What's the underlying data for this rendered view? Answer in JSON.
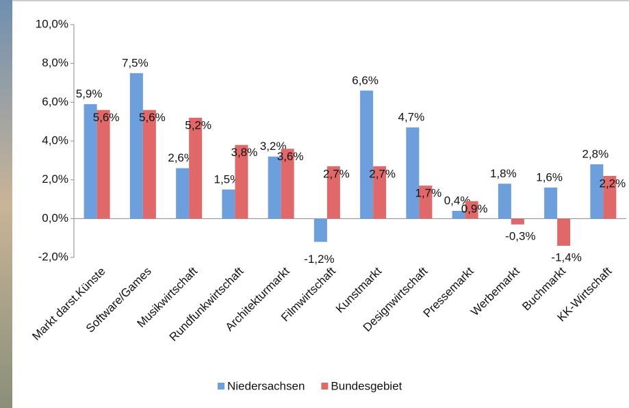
{
  "chart_data": {
    "type": "bar",
    "categories": [
      "Markt darst.Künste",
      "Software/Games",
      "Musikwirtschaft",
      "Rundfunkwirtschaft",
      "Architekturmarkt",
      "Filmwirtschaft",
      "Kunstmarkt",
      "Designwirtschaft",
      "Pressemarkt",
      "Werbemarkt",
      "Buchmarkt",
      "KK-Wirtschaft"
    ],
    "series": [
      {
        "name": "Niedersachsen",
        "color": "#6c9fdc",
        "values": [
          5.9,
          7.5,
          2.6,
          1.5,
          3.2,
          -1.2,
          6.6,
          4.7,
          0.4,
          1.8,
          1.6,
          2.8
        ],
        "value_labels": [
          "5,9%",
          "7,5%",
          "2,6%",
          "1,5%",
          "3,2%",
          "-1,2%",
          "6,6%",
          "4,7%",
          "0,4%",
          "1,8%",
          "1,6%",
          "2,8%"
        ]
      },
      {
        "name": "Bundesgebiet",
        "color": "#e06868",
        "values": [
          5.6,
          5.6,
          5.2,
          3.8,
          3.6,
          2.7,
          2.7,
          1.7,
          0.9,
          -0.3,
          -1.4,
          2.2
        ],
        "value_labels": [
          "5,6%",
          "5,6%",
          "5,2%",
          "3,8%",
          "3,6%",
          "2,7%",
          "2,7%",
          "1,7%",
          "0,9%",
          "-0,3%",
          "-1,4%",
          "2,2%"
        ]
      }
    ],
    "ylim": [
      -2,
      10
    ],
    "yticks": [
      {
        "value": -2,
        "label": "-2,0%"
      },
      {
        "value": 0,
        "label": "0,0%"
      },
      {
        "value": 2,
        "label": "2,0%"
      },
      {
        "value": 4,
        "label": "4,0%"
      },
      {
        "value": 6,
        "label": "6,0%"
      },
      {
        "value": 8,
        "label": "8,0%"
      },
      {
        "value": 10,
        "label": "10,0%"
      }
    ],
    "grid": false,
    "legend": "bottom"
  }
}
